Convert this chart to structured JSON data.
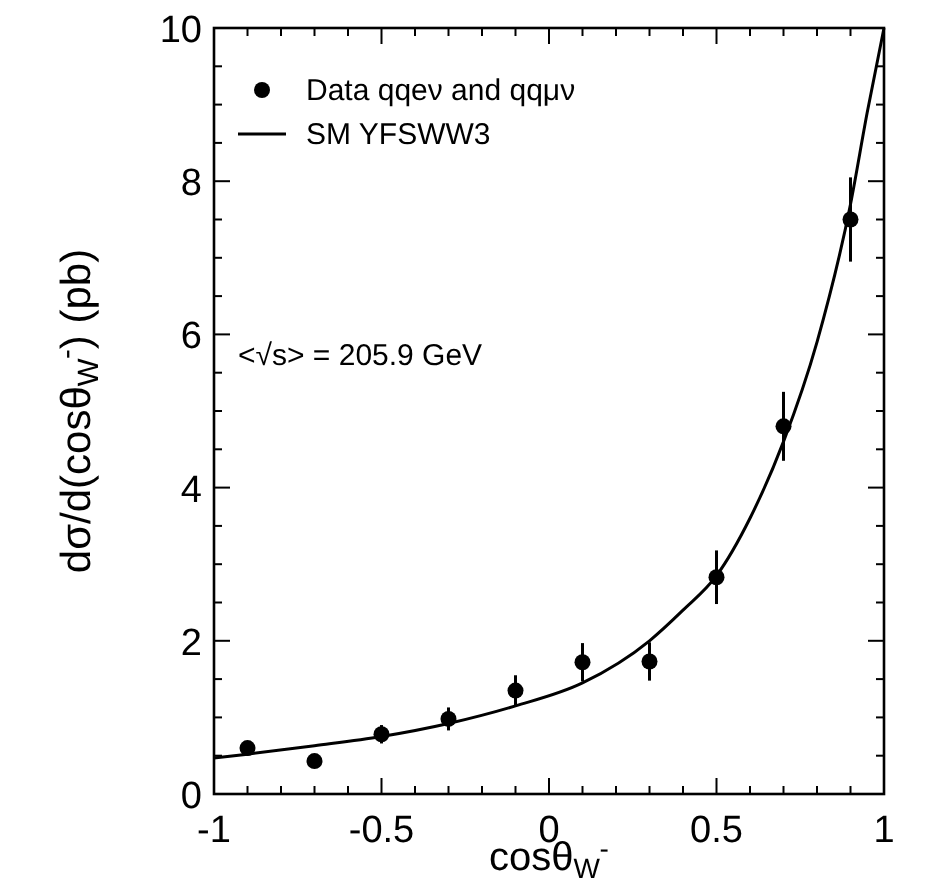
{
  "chart_data": {
    "type": "scatter",
    "xlabel": "cosθ$_{W}$$^{-}$",
    "ylabel": "dσ/d(cosθ$_{W}$$^{-}$) (pb)",
    "annotations": [
      "<√s> = 205.9 GeV"
    ],
    "xlim": [
      -1,
      1
    ],
    "xticks": [
      -1,
      {
        "value": -0.9,
        "label": null
      },
      {
        "value": -0.8,
        "label": null
      },
      {
        "value": -0.7,
        "label": null
      },
      {
        "value": -0.6,
        "label": null
      },
      -0.5,
      {
        "value": -0.4,
        "label": null
      },
      {
        "value": -0.3,
        "label": null
      },
      {
        "value": -0.2,
        "label": null
      },
      {
        "value": -0.1,
        "label": null
      },
      0,
      {
        "value": 0.1,
        "label": null
      },
      {
        "value": 0.2,
        "label": null
      },
      {
        "value": 0.3,
        "label": null
      },
      {
        "value": 0.4,
        "label": null
      },
      0.5,
      {
        "value": 0.6,
        "label": null
      },
      {
        "value": 0.7,
        "label": null
      },
      {
        "value": 0.8,
        "label": null
      },
      {
        "value": 0.9,
        "label": null
      },
      1
    ],
    "ylim": [
      0,
      10
    ],
    "yticks": [
      0,
      {
        "value": 0.5,
        "label": null
      },
      {
        "value": 1,
        "label": null
      },
      {
        "value": 1.5,
        "label": null
      },
      2,
      {
        "value": 2.5,
        "label": null
      },
      {
        "value": 3,
        "label": null
      },
      {
        "value": 3.5,
        "label": null
      },
      4,
      {
        "value": 4.5,
        "label": null
      },
      {
        "value": 5,
        "label": null
      },
      {
        "value": 5.5,
        "label": null
      },
      6,
      {
        "value": 6.5,
        "label": null
      },
      {
        "value": 7,
        "label": null
      },
      {
        "value": 7.5,
        "label": null
      },
      8,
      {
        "value": 8.5,
        "label": null
      },
      {
        "value": 9,
        "label": null
      },
      {
        "value": 9.5,
        "label": null
      },
      10
    ],
    "grid": false,
    "legend": "top left",
    "series": [
      {
        "name": "Data qqeν and qqμν",
        "marker": "circle",
        "color": "#000000",
        "x": [
          -0.9,
          -0.7,
          -0.5,
          -0.3,
          -0.1,
          0.1,
          0.3,
          0.5,
          0.7,
          0.9
        ],
        "values": [
          0.6,
          0.43,
          0.78,
          0.98,
          1.35,
          1.72,
          1.73,
          2.83,
          4.8,
          7.5
        ],
        "errors": [
          null,
          null,
          0.12,
          0.15,
          0.2,
          0.25,
          0.25,
          0.35,
          0.45,
          0.55
        ]
      },
      {
        "name": "SM YFSWW3",
        "type": "line",
        "line_style": "solid",
        "color": "#000000",
        "x": [
          -1,
          -0.9,
          -0.7,
          -0.5,
          -0.3,
          -0.1,
          0.1,
          0.3,
          0.4,
          0.5,
          0.6,
          0.7,
          0.8,
          0.9,
          0.95,
          1.0
        ],
        "values": [
          0.47,
          0.52,
          0.63,
          0.75,
          0.92,
          1.15,
          1.45,
          2.0,
          2.4,
          2.85,
          3.6,
          4.6,
          5.9,
          7.7,
          8.9,
          10
        ]
      }
    ]
  }
}
